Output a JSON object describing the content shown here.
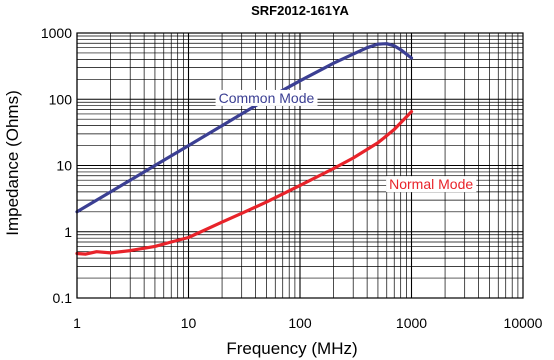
{
  "chart_data": {
    "type": "line",
    "title": "SRF2012-161YA",
    "xlabel": "Frequency (MHz)",
    "ylabel": "Impedance (Ohms)",
    "x_scale": "log",
    "y_scale": "log",
    "xlim": [
      1,
      10000
    ],
    "ylim": [
      0.1,
      1000
    ],
    "x_ticks": [
      "1",
      "10",
      "100",
      "1000",
      "10000"
    ],
    "y_ticks": [
      "0.1",
      "1",
      "10",
      "100",
      "1000"
    ],
    "grid": true,
    "legend": "none",
    "series": [
      {
        "name": "Common Mode",
        "color": "#3b3f93",
        "x": [
          1,
          2,
          3,
          5,
          10,
          20,
          30,
          50,
          100,
          200,
          300,
          400,
          500,
          600,
          700,
          800,
          900,
          1000
        ],
        "y": [
          2,
          4,
          6,
          10,
          20,
          40,
          60,
          100,
          190,
          350,
          480,
          600,
          680,
          690,
          640,
          560,
          480,
          420
        ]
      },
      {
        "name": "Normal Mode",
        "color": "#e8232a",
        "x": [
          1,
          1.2,
          1.5,
          2,
          3,
          5,
          7,
          10,
          20,
          30,
          50,
          100,
          200,
          300,
          500,
          700,
          1000
        ],
        "y": [
          0.47,
          0.46,
          0.5,
          0.48,
          0.52,
          0.6,
          0.7,
          0.82,
          1.4,
          1.9,
          2.8,
          5,
          9,
          13,
          22,
          35,
          65
        ]
      }
    ],
    "annotations": [
      {
        "text": "Common Mode",
        "x": 50,
        "y": 100,
        "color": "#3b3f93"
      },
      {
        "text": "Normal Mode",
        "x": 1500,
        "y": 5,
        "color": "#e8232a"
      }
    ]
  }
}
